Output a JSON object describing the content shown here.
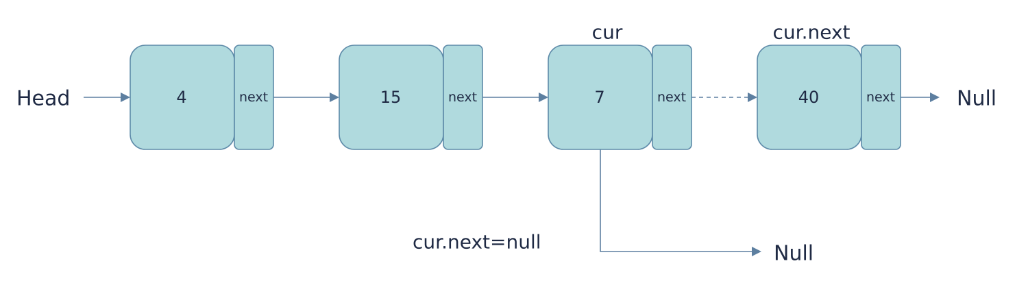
{
  "head_label": "Head",
  "null_label_right": "Null",
  "null_label_bottom": "Null",
  "assignment_label": "cur.next=null",
  "nodes": [
    {
      "value": "4",
      "next_label": "next",
      "pointer_label": ""
    },
    {
      "value": "15",
      "next_label": "next",
      "pointer_label": ""
    },
    {
      "value": "7",
      "next_label": "next",
      "pointer_label": "cur"
    },
    {
      "value": "40",
      "next_label": "next",
      "pointer_label": "cur.next"
    }
  ],
  "colors": {
    "node_fill": "#b0dade",
    "node_stroke": "#5d8aa8",
    "arrow": "#5d7fa0",
    "text": "#1f2a44"
  }
}
